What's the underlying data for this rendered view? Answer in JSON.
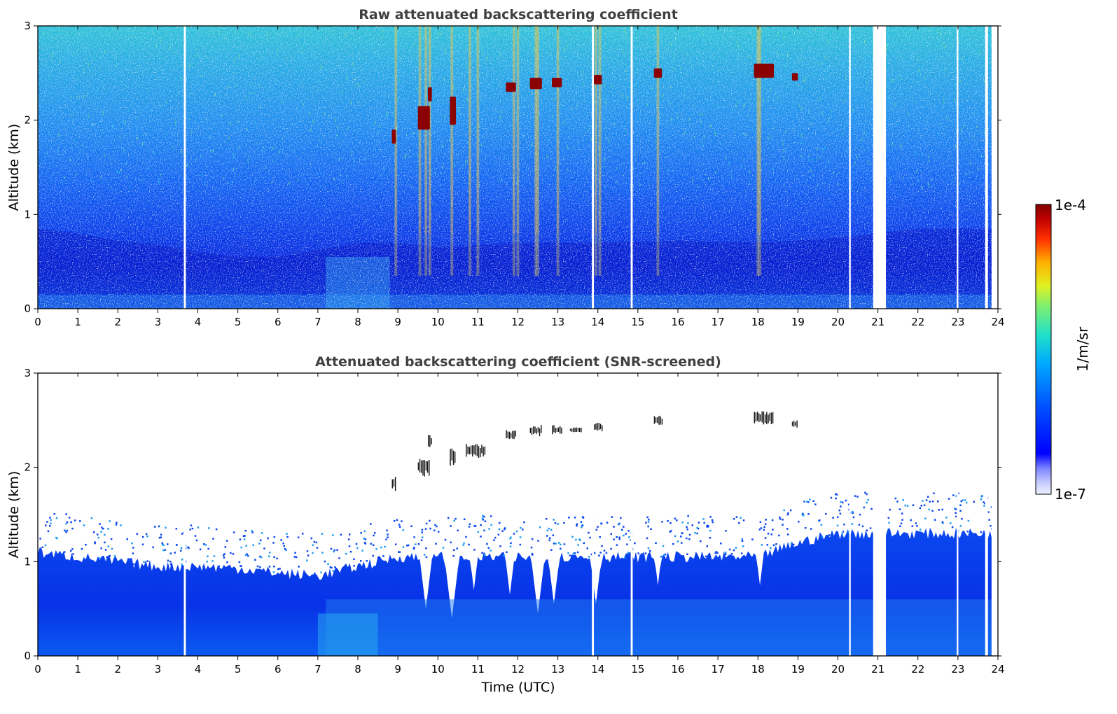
{
  "chart_data": [
    {
      "type": "heatmap",
      "title": "Raw attenuated backscattering coefficient",
      "xlabel": "",
      "ylabel": "Altitude (km)",
      "xlim": [
        0,
        24
      ],
      "ylim": [
        0,
        3
      ],
      "x_ticks": [
        "0",
        "1",
        "2",
        "3",
        "4",
        "5",
        "6",
        "7",
        "8",
        "9",
        "10",
        "11",
        "12",
        "13",
        "14",
        "15",
        "16",
        "17",
        "18",
        "19",
        "20",
        "21",
        "22",
        "23",
        "24"
      ],
      "y_ticks": [
        "0",
        "1",
        "2",
        "3"
      ],
      "colorbar": {
        "label": "1/m/sr",
        "min_label": "1e-7",
        "max_label": "1e-4",
        "scale": "log",
        "colormap": "jet"
      },
      "data_gaps": [
        [
          3.65,
          3.7
        ],
        [
          13.85,
          13.9
        ],
        [
          14.82,
          14.87
        ],
        [
          20.28,
          20.32
        ],
        [
          20.88,
          21.2
        ],
        [
          22.97,
          23.01
        ],
        [
          23.68,
          23.75
        ],
        [
          23.84,
          24.0
        ]
      ],
      "cloud_features": [
        {
          "time_start": 8.85,
          "time_end": 8.95,
          "alt_bottom": 1.75,
          "alt_top": 1.9
        },
        {
          "time_start": 9.5,
          "time_end": 9.8,
          "alt_bottom": 1.9,
          "alt_top": 2.15
        },
        {
          "time_start": 9.75,
          "time_end": 9.85,
          "alt_bottom": 2.2,
          "alt_top": 2.35
        },
        {
          "time_start": 10.3,
          "time_end": 10.45,
          "alt_bottom": 1.95,
          "alt_top": 2.25
        },
        {
          "time_start": 11.7,
          "time_end": 11.95,
          "alt_bottom": 2.3,
          "alt_top": 2.4
        },
        {
          "time_start": 12.3,
          "time_end": 12.6,
          "alt_bottom": 2.33,
          "alt_top": 2.45
        },
        {
          "time_start": 12.85,
          "time_end": 13.1,
          "alt_bottom": 2.35,
          "alt_top": 2.45
        },
        {
          "time_start": 13.9,
          "time_end": 14.1,
          "alt_bottom": 2.38,
          "alt_top": 2.48
        },
        {
          "time_start": 15.4,
          "time_end": 15.6,
          "alt_bottom": 2.45,
          "alt_top": 2.55
        },
        {
          "time_start": 17.9,
          "time_end": 18.4,
          "alt_bottom": 2.45,
          "alt_top": 2.6
        },
        {
          "time_start": 18.85,
          "time_end": 19.0,
          "alt_bottom": 2.42,
          "alt_top": 2.5
        }
      ]
    },
    {
      "type": "heatmap",
      "title": "Attenuated backscattering coefficient (SNR-screened)",
      "xlabel": "Time (UTC)",
      "ylabel": "Altitude (km)",
      "xlim": [
        0,
        24
      ],
      "ylim": [
        0,
        3
      ],
      "x_ticks": [
        "0",
        "1",
        "2",
        "3",
        "4",
        "5",
        "6",
        "7",
        "8",
        "9",
        "10",
        "11",
        "12",
        "13",
        "14",
        "15",
        "16",
        "17",
        "18",
        "19",
        "20",
        "21",
        "22",
        "23",
        "24"
      ],
      "y_ticks": [
        "0",
        "1",
        "2",
        "3"
      ],
      "colorbar": {
        "label": "1/m/sr",
        "min_label": "1e-7",
        "max_label": "1e-4",
        "scale": "log",
        "colormap": "jet"
      },
      "boundary_layer_top_km": [
        [
          0,
          1.1
        ],
        [
          1,
          1.05
        ],
        [
          2,
          1.0
        ],
        [
          3,
          0.95
        ],
        [
          4,
          0.95
        ],
        [
          5,
          0.93
        ],
        [
          6,
          0.88
        ],
        [
          7,
          0.85
        ],
        [
          8,
          0.95
        ],
        [
          9,
          1.05
        ],
        [
          10,
          1.05
        ],
        [
          11,
          1.05
        ],
        [
          12,
          1.05
        ],
        [
          13,
          1.05
        ],
        [
          14,
          1.05
        ],
        [
          15,
          1.05
        ],
        [
          16,
          1.05
        ],
        [
          17,
          1.05
        ],
        [
          18,
          1.05
        ],
        [
          19,
          1.2
        ],
        [
          20,
          1.3
        ],
        [
          21,
          1.3
        ],
        [
          22,
          1.3
        ],
        [
          23,
          1.3
        ],
        [
          24,
          1.3
        ]
      ],
      "clear_air_notches": [
        [
          9.7,
          0.5
        ],
        [
          10.35,
          0.4
        ],
        [
          10.9,
          0.7
        ],
        [
          11.8,
          0.65
        ],
        [
          12.5,
          0.45
        ],
        [
          12.9,
          0.55
        ],
        [
          13.95,
          0.55
        ],
        [
          15.5,
          0.75
        ],
        [
          18.05,
          0.75
        ]
      ],
      "data_gaps": [
        [
          3.65,
          3.7
        ],
        [
          13.85,
          13.9
        ],
        [
          14.82,
          14.87
        ],
        [
          20.28,
          20.32
        ],
        [
          20.88,
          21.2
        ],
        [
          22.97,
          23.01
        ],
        [
          23.68,
          23.75
        ],
        [
          23.84,
          24.0
        ]
      ],
      "cloud_features": [
        {
          "time_start": 8.85,
          "time_end": 8.95,
          "alt_bottom": 1.75,
          "alt_top": 1.9
        },
        {
          "time_start": 9.5,
          "time_end": 9.8,
          "alt_bottom": 1.9,
          "alt_top": 2.1
        },
        {
          "time_start": 9.75,
          "time_end": 9.85,
          "alt_bottom": 2.2,
          "alt_top": 2.35
        },
        {
          "time_start": 10.3,
          "time_end": 10.45,
          "alt_bottom": 2.0,
          "alt_top": 2.25
        },
        {
          "time_start": 10.7,
          "time_end": 11.2,
          "alt_bottom": 2.1,
          "alt_top": 2.25
        },
        {
          "time_start": 11.7,
          "time_end": 11.95,
          "alt_bottom": 2.3,
          "alt_top": 2.4
        },
        {
          "time_start": 12.3,
          "time_end": 12.6,
          "alt_bottom": 2.33,
          "alt_top": 2.45
        },
        {
          "time_start": 12.85,
          "time_end": 13.1,
          "alt_bottom": 2.35,
          "alt_top": 2.45
        },
        {
          "time_start": 13.3,
          "time_end": 13.6,
          "alt_bottom": 2.37,
          "alt_top": 2.43
        },
        {
          "time_start": 13.9,
          "time_end": 14.1,
          "alt_bottom": 2.38,
          "alt_top": 2.48
        },
        {
          "time_start": 15.4,
          "time_end": 15.6,
          "alt_bottom": 2.45,
          "alt_top": 2.55
        },
        {
          "time_start": 17.9,
          "time_end": 18.4,
          "alt_bottom": 2.45,
          "alt_top": 2.6
        },
        {
          "time_start": 18.85,
          "time_end": 19.0,
          "alt_bottom": 2.42,
          "alt_top": 2.5
        }
      ]
    }
  ],
  "colors": {
    "title": "#404040",
    "boundary_layer": "#0a46f0",
    "boundary_layer_deep": "#0014c8",
    "boundary_layer_light": "#1e82f0",
    "noise_cyan": "#2cc8e6",
    "noise_green": "#6ad88c",
    "cloud_raw": "#8b0000",
    "cloud_screened": "#111111",
    "precip_yellow": "#e8d84a"
  }
}
